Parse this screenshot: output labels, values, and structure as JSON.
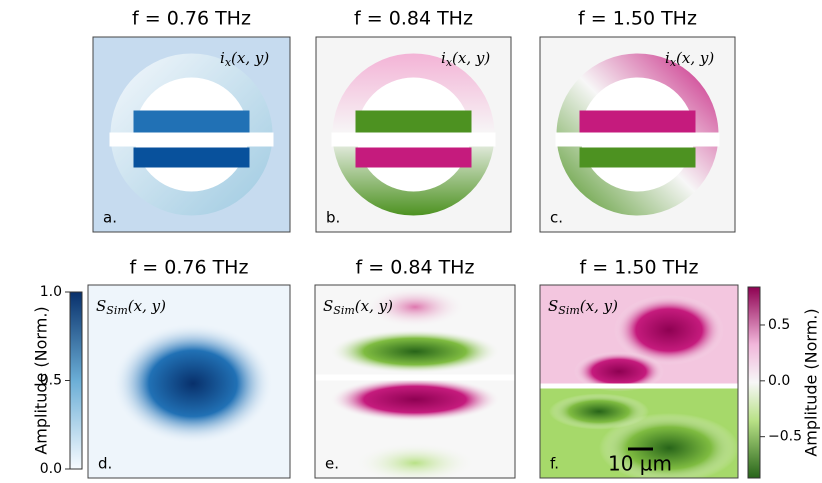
{
  "panels": [
    {
      "title": "f = 0.76 THz",
      "field": "i",
      "field_sub": "x",
      "field_args": "(x, y)",
      "letter": "a."
    },
    {
      "title": "f = 0.84 THz",
      "field": "i",
      "field_sub": "x",
      "field_args": "(x, y)",
      "letter": "b."
    },
    {
      "title": "f = 1.50 THz",
      "field": "i",
      "field_sub": "x",
      "field_args": "(x, y)",
      "letter": "c."
    },
    {
      "title": "f = 0.76 THz",
      "field": "S",
      "field_sub": "Sim",
      "field_args": "(x, y)",
      "letter": "d."
    },
    {
      "title": "f = 0.84 THz",
      "field": "S",
      "field_sub": "Sim",
      "field_args": "(x, y)",
      "letter": "e."
    },
    {
      "title": "f = 1.50 THz",
      "field": "S",
      "field_sub": "Sim",
      "field_args": "(x, y)",
      "letter": "f."
    }
  ],
  "colorbars": [
    {
      "label": "Amplitude (Norm.)",
      "lim": [
        0,
        1
      ],
      "ticks": [
        {
          "value": 0,
          "label": "0.0"
        },
        {
          "value": 0.5,
          "label": "0.5"
        },
        {
          "value": 1,
          "label": "1.0"
        }
      ]
    },
    {
      "label": "Amplitude (Norm.)",
      "lim": [
        -0.87,
        0.84
      ],
      "ticks": [
        {
          "value": -0.5,
          "label": "−0.5"
        },
        {
          "value": 0,
          "label": "0.0"
        },
        {
          "value": 0.5,
          "label": "0.5"
        }
      ]
    }
  ],
  "scale_bar": "10 µm"
}
